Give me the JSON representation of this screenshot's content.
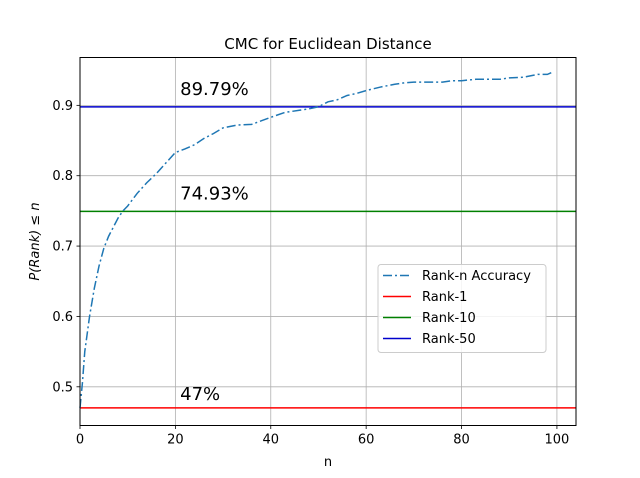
{
  "chart_data": {
    "type": "line",
    "title": "CMC for Euclidean Distance",
    "xlabel": "n",
    "ylabel": "P(Rank) ≤ n",
    "xlim": [
      0,
      104
    ],
    "ylim": [
      0.445,
      0.968
    ],
    "xticks": [
      0,
      20,
      40,
      60,
      80,
      100
    ],
    "yticks": [
      0.5,
      0.6,
      0.7,
      0.8,
      0.9
    ],
    "grid": true,
    "legend_position": "center-right",
    "series": [
      {
        "name": "Rank-n Accuracy",
        "style": "dashdot",
        "color": "#1f77b4",
        "x": [
          0,
          0.5,
          1,
          2,
          3,
          4,
          5,
          6,
          7,
          8,
          9,
          10,
          12,
          14,
          16,
          18,
          20,
          22,
          24,
          26,
          28,
          30,
          33,
          36,
          38,
          40,
          43,
          46,
          48,
          50,
          52,
          54,
          56,
          58,
          60,
          63,
          66,
          68,
          70,
          73,
          76,
          78,
          80,
          83,
          86,
          88,
          90,
          93,
          96,
          98,
          99
        ],
        "y": [
          0.47,
          0.505,
          0.55,
          0.6,
          0.64,
          0.672,
          0.697,
          0.714,
          0.727,
          0.74,
          0.75,
          0.757,
          0.775,
          0.79,
          0.803,
          0.818,
          0.833,
          0.838,
          0.844,
          0.853,
          0.86,
          0.868,
          0.872,
          0.873,
          0.878,
          0.883,
          0.89,
          0.893,
          0.895,
          0.898,
          0.905,
          0.908,
          0.914,
          0.917,
          0.921,
          0.926,
          0.93,
          0.932,
          0.933,
          0.933,
          0.933,
          0.935,
          0.935,
          0.937,
          0.937,
          0.937,
          0.939,
          0.94,
          0.944,
          0.944,
          0.947
        ]
      },
      {
        "name": "Rank-1",
        "style": "solid",
        "color": "#ff0000",
        "hline": 0.47,
        "x": [
          0,
          104
        ],
        "y": [
          0.47,
          0.47
        ]
      },
      {
        "name": "Rank-10",
        "style": "solid",
        "color": "#008000",
        "hline": 0.7493,
        "x": [
          0,
          104
        ],
        "y": [
          0.7493,
          0.7493
        ]
      },
      {
        "name": "Rank-50",
        "style": "solid",
        "color": "#0000cc",
        "hline": 0.8979,
        "x": [
          0,
          104
        ],
        "y": [
          0.8979,
          0.8979
        ]
      }
    ],
    "annotations": [
      {
        "text": "89.79%",
        "x": 21,
        "y": 0.9145
      },
      {
        "text": "74.93%",
        "x": 21,
        "y": 0.7665
      },
      {
        "text": "47%",
        "x": 21,
        "y": 0.4815
      }
    ]
  }
}
